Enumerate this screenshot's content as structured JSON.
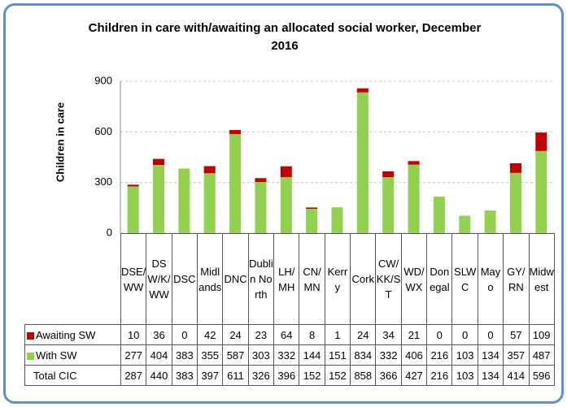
{
  "chart_data": {
    "type": "stacked-bar",
    "title": "Children in care with/awaiting  an allocated social worker, December 2016",
    "y_label": "Children in care",
    "categories": [
      "DSE/WW",
      "DSW/K/WW",
      "DSC",
      "Midlands",
      "DNC",
      "Dublin North",
      "LH/MH",
      "CN/MN",
      "Kerry",
      "Cork",
      "CW/KK/ST",
      "WD/WX",
      "Donegal",
      "SLWC",
      "Mayo",
      "GY/RN",
      "Midwest"
    ],
    "series": [
      {
        "name": "Awaiting SW",
        "color": "#c00000",
        "values": [
          10,
          36,
          0,
          42,
          24,
          23,
          64,
          8,
          1,
          24,
          34,
          21,
          0,
          0,
          0,
          57,
          109
        ]
      },
      {
        "name": "With SW",
        "color": "#92d050",
        "values": [
          277,
          404,
          383,
          355,
          587,
          303,
          332,
          144,
          151,
          834,
          332,
          406,
          216,
          103,
          134,
          357,
          487
        ]
      }
    ],
    "totals": {
      "name": "Total CIC",
      "values": [
        287,
        440,
        383,
        397,
        611,
        326,
        396,
        152,
        152,
        858,
        366,
        427,
        216,
        103,
        134,
        414,
        596
      ]
    },
    "ylim": [
      0,
      900
    ],
    "yticks": [
      0,
      300,
      600,
      900
    ],
    "grid": true
  }
}
